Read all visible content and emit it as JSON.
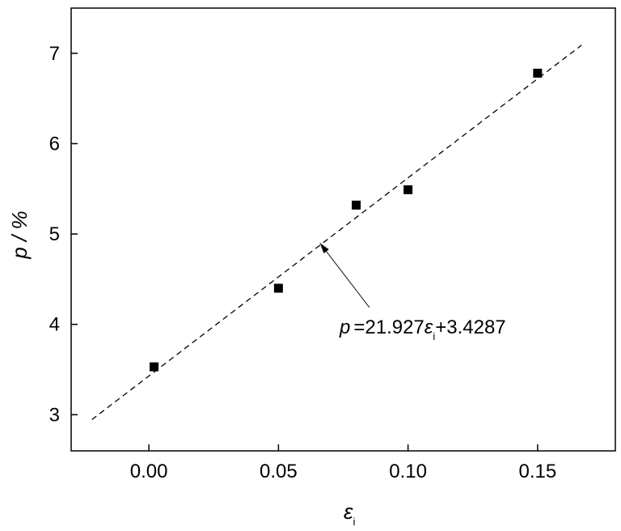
{
  "chart_data": {
    "type": "scatter",
    "xlabel": {
      "symbol": "ε",
      "subscript": "i"
    },
    "ylabel": "p / %",
    "xlim": [
      -0.03,
      0.18
    ],
    "ylim": [
      2.6,
      7.5
    ],
    "xticks": [
      "0.00",
      "0.05",
      "0.10",
      "0.15"
    ],
    "yticks": [
      "3",
      "4",
      "5",
      "6",
      "7"
    ],
    "series": [
      {
        "points": [
          {
            "x": 0.002,
            "y": 3.53
          },
          {
            "x": 0.05,
            "y": 4.4
          },
          {
            "x": 0.08,
            "y": 5.32
          },
          {
            "x": 0.1,
            "y": 5.49
          },
          {
            "x": 0.15,
            "y": 6.78
          }
        ]
      }
    ],
    "fit_line": {
      "slope": 21.927,
      "intercept": 3.4287,
      "x_range": [
        -0.022,
        0.167
      ],
      "style": "dashed"
    },
    "annotation": {
      "lhs": "p",
      "rhs_pre": "=21.927",
      "eps": "ε",
      "sub": "i",
      "rhs_post": "+3.4287",
      "arrow_to": {
        "x": 0.066,
        "y": 4.9
      }
    }
  }
}
